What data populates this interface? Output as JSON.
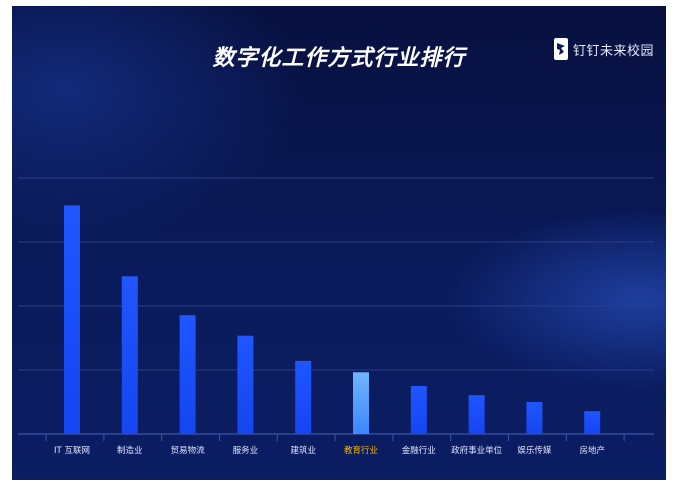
{
  "header": {
    "title": "数字化工作方式行业排行",
    "logo_text": "钉钉未来校园",
    "logo_icon": "dingtalk-logo-icon"
  },
  "colors": {
    "bar": "#1f56ff",
    "bar_highlight": "#6fb5ff",
    "label": "#dfe6ff",
    "label_highlight": "#f5b400"
  },
  "chart_data": {
    "type": "bar",
    "title": "数字化工作方式行业排行",
    "categories": [
      "IT 互联网",
      "制造业",
      "贸易物流",
      "服务业",
      "建筑业",
      "教育行业",
      "金融行业",
      "政府事业单位",
      "娱乐传媒",
      "房地产"
    ],
    "values": [
      100,
      69,
      52,
      43,
      32,
      27,
      21,
      17,
      14,
      10
    ],
    "highlight_category": "教育行业",
    "ylim": [
      0,
      112
    ],
    "grid": true,
    "xlabel": "",
    "ylabel": ""
  }
}
